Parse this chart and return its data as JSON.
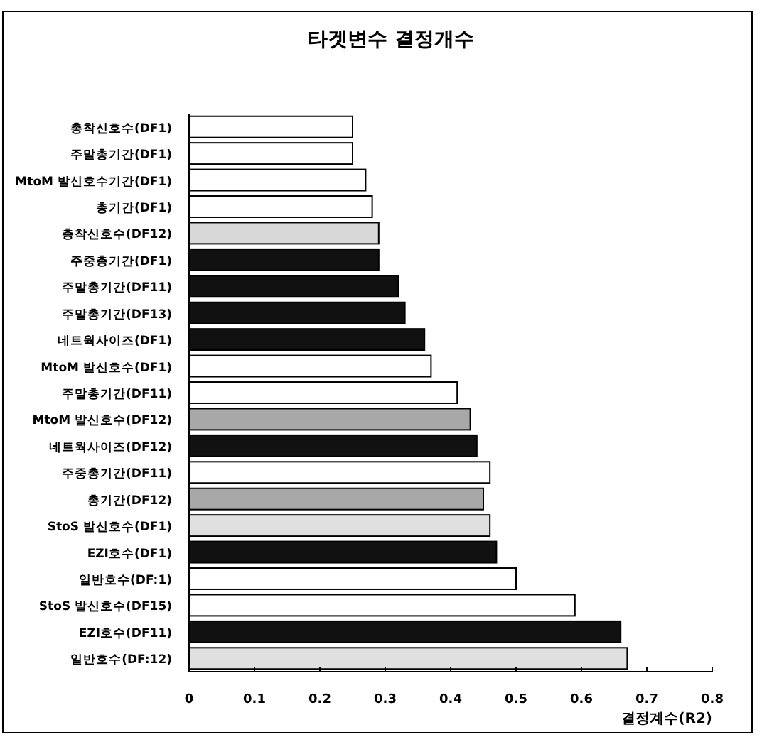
{
  "chart_data": {
    "type": "bar",
    "orientation": "horizontal",
    "title": "타겟변수 결정개수",
    "xlabel": "결정계수(R2)",
    "categories": [
      "총착신호수(DF1)",
      "주말총기간(DF1)",
      "MtoM 발신호수기간(DF1)",
      "총기간(DF1)",
      "총착신호수(DF12)",
      "주중총기간(DF1)",
      "주말총기간(DF11)",
      "주말총기간(DF13)",
      "네트웍사이즈(DF1)",
      "MtoM 발신호수(DF1)",
      "주말총기간(DF11)",
      "MtoM 발신호수(DF12)",
      "네트웍사이즈(DF12)",
      "주중총기간(DF11)",
      "총기간(DF12)",
      "StoS 발신호수(DF1)",
      "EZI호수(DF1)",
      "일반호수(DF:1)",
      "StoS 발신호수(DF15)",
      "EZI호수(DF11)",
      "일반호수(DF:12)"
    ],
    "values": [
      0.25,
      0.25,
      0.27,
      0.28,
      0.29,
      0.29,
      0.32,
      0.33,
      0.36,
      0.37,
      0.41,
      0.43,
      0.44,
      0.46,
      0.45,
      0.46,
      0.47,
      0.5,
      0.59,
      0.66,
      0.67
    ],
    "colors": [
      "#ffffff",
      "#ffffff",
      "#ffffff",
      "#ffffff",
      "#d8d8d8",
      "#111111",
      "#111111",
      "#111111",
      "#111111",
      "#ffffff",
      "#ffffff",
      "#a8a8a8",
      "#111111",
      "#ffffff",
      "#a8a8a8",
      "#e0e0e0",
      "#111111",
      "#ffffff",
      "#ffffff",
      "#111111",
      "#e0e0e0"
    ],
    "xlim": [
      0,
      0.8
    ],
    "xticks": [
      0,
      0.1,
      0.2,
      0.3,
      0.4,
      0.5,
      0.6,
      0.7,
      0.8
    ]
  }
}
